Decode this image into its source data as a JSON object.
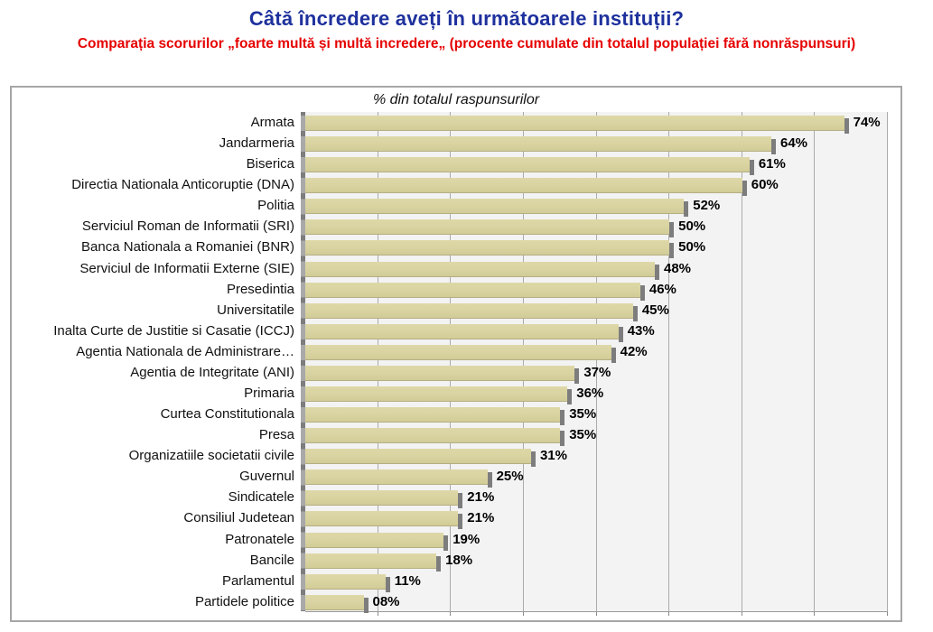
{
  "header": {
    "title": "Câtă încredere aveți în următoarele instituții?",
    "subtitle": "Comparația scorurilor „foarte multă și multă incredere„ (procente cumulate din totalul populației fără nonrăspunsuri)"
  },
  "chart_data": {
    "type": "bar",
    "orientation": "horizontal",
    "title": "% din totalul raspunsurilor",
    "categories": [
      "Armata",
      "Jandarmeria",
      "Biserica",
      "Directia Nationala Anticoruptie (DNA)",
      "Politia",
      "Serviciul Roman de Informatii (SRI)",
      "Banca Nationala a Romaniei (BNR)",
      "Serviciul de Informatii Externe (SIE)",
      "Presedintia",
      "Universitatile",
      "Inalta Curte de Justitie si Casatie (ICCJ)",
      "Agentia Nationala de Administrare…",
      "Agentia de Integritate (ANI)",
      "Primaria",
      "Curtea Constitutionala",
      "Presa",
      "Organizatiile societatii civile",
      "Guvernul",
      "Sindicatele",
      "Consiliul Judetean",
      "Patronatele",
      "Bancile",
      "Parlamentul",
      "Partidele politice"
    ],
    "values": [
      74,
      64,
      61,
      60,
      52,
      50,
      50,
      48,
      46,
      45,
      43,
      42,
      37,
      36,
      35,
      35,
      31,
      25,
      21,
      21,
      19,
      18,
      11,
      8
    ],
    "value_labels": [
      "74%",
      "64%",
      "61%",
      "60%",
      "52%",
      "50%",
      "50%",
      "48%",
      "46%",
      "45%",
      "43%",
      "42%",
      "37%",
      "36%",
      "35%",
      "35%",
      "31%",
      "25%",
      "21%",
      "21%",
      "19%",
      "18%",
      "11%",
      "08%"
    ],
    "xlabel": "",
    "ylabel": "",
    "xlim": [
      0,
      80
    ],
    "gridline_interval": 10,
    "grid": true,
    "legend": false
  },
  "colors": {
    "title_blue": "#1e319d",
    "subtitle_red": "#e60000",
    "bar_fill": "#d9d3a1",
    "bar_edge": "#b5ae84",
    "shadow_gray": "#7d7d7d",
    "axis_gray": "#a9a9a9",
    "gridline_gray": "#ababab",
    "plot_bg": "#f3f3f3",
    "frame_border": "#a6a6a6"
  }
}
